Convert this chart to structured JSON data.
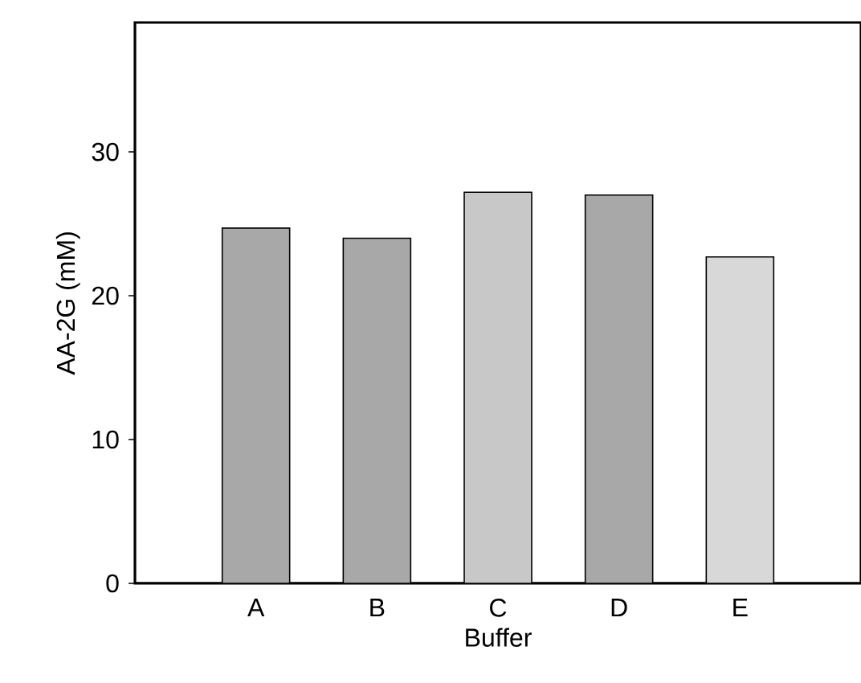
{
  "chart_data": {
    "type": "bar",
    "xlabel": "Buffer",
    "ylabel": "AA-2G (mM)",
    "categories": [
      "A",
      "B",
      "C",
      "D",
      "E"
    ],
    "values": [
      24.7,
      24.0,
      27.2,
      27.0,
      22.7
    ],
    "colors": [
      "#a8a8a8",
      "#a8a8a8",
      "#c8c8c8",
      "#a8a8a8",
      "#d8d8d8"
    ],
    "ylim": [
      0,
      39
    ],
    "yticks": [
      0,
      10,
      20,
      30
    ],
    "grid": false
  }
}
